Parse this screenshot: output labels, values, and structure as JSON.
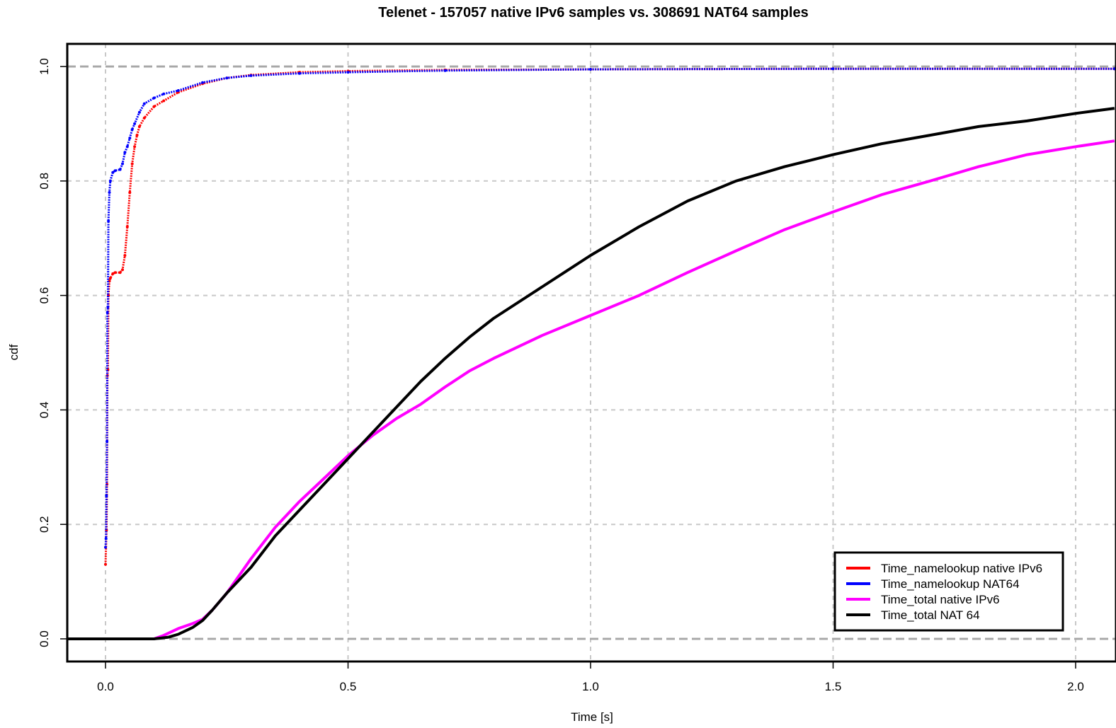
{
  "chart_data": {
    "type": "line",
    "title": "Telenet - 157057 native IPv6 samples vs. 308691 NAT64 samples",
    "xlabel": "Time [s]",
    "ylabel": "cdf",
    "xlim": [
      -0.08,
      2.08
    ],
    "ylim": [
      -0.04,
      1.04
    ],
    "x_ticks": [
      "0.0",
      "0.5",
      "1.0",
      "1.5",
      "2.0"
    ],
    "y_ticks": [
      "0.0",
      "0.2",
      "0.4",
      "0.6",
      "0.8",
      "1.0"
    ],
    "grid": true,
    "legend_position": "bottom-right",
    "series": [
      {
        "name": "Time_namelookup native IPv6",
        "color": "#ff0000",
        "style": "points",
        "x": [
          0.0,
          0.002,
          0.003,
          0.004,
          0.005,
          0.006,
          0.008,
          0.01,
          0.015,
          0.02,
          0.03,
          0.035,
          0.04,
          0.045,
          0.05,
          0.055,
          0.06,
          0.065,
          0.07,
          0.08,
          0.1,
          0.12,
          0.15,
          0.2,
          0.25,
          0.3,
          0.4,
          0.5,
          0.7,
          1.0,
          1.5,
          2.08
        ],
        "y": [
          0.13,
          0.19,
          0.27,
          0.46,
          0.47,
          0.6,
          0.625,
          0.63,
          0.638,
          0.64,
          0.64,
          0.645,
          0.67,
          0.72,
          0.78,
          0.83,
          0.86,
          0.88,
          0.895,
          0.91,
          0.93,
          0.94,
          0.955,
          0.97,
          0.98,
          0.985,
          0.99,
          0.992,
          0.994,
          0.995,
          0.996,
          0.996
        ]
      },
      {
        "name": "Time_namelookup NAT64",
        "color": "#0000ff",
        "style": "points",
        "x": [
          0.0,
          0.001,
          0.002,
          0.003,
          0.004,
          0.005,
          0.006,
          0.008,
          0.01,
          0.015,
          0.02,
          0.03,
          0.035,
          0.04,
          0.045,
          0.05,
          0.055,
          0.06,
          0.07,
          0.08,
          0.1,
          0.12,
          0.15,
          0.2,
          0.25,
          0.3,
          0.4,
          0.5,
          0.7,
          1.0,
          1.5,
          2.08
        ],
        "y": [
          0.16,
          0.175,
          0.25,
          0.345,
          0.57,
          0.58,
          0.73,
          0.78,
          0.8,
          0.815,
          0.818,
          0.82,
          0.83,
          0.85,
          0.86,
          0.875,
          0.89,
          0.9,
          0.92,
          0.935,
          0.945,
          0.952,
          0.958,
          0.972,
          0.98,
          0.984,
          0.988,
          0.99,
          0.993,
          0.995,
          0.996,
          0.996
        ]
      },
      {
        "name": "Time_total native IPv6",
        "color": "#ff00ff",
        "style": "line",
        "x": [
          -0.08,
          0.1,
          0.12,
          0.15,
          0.18,
          0.2,
          0.22,
          0.25,
          0.3,
          0.35,
          0.4,
          0.45,
          0.5,
          0.55,
          0.6,
          0.65,
          0.7,
          0.75,
          0.8,
          0.9,
          1.0,
          1.1,
          1.2,
          1.3,
          1.4,
          1.5,
          1.6,
          1.7,
          1.8,
          1.9,
          2.0,
          2.08
        ],
        "y": [
          0.0,
          0.0,
          0.006,
          0.018,
          0.027,
          0.034,
          0.05,
          0.08,
          0.14,
          0.195,
          0.24,
          0.28,
          0.32,
          0.355,
          0.385,
          0.41,
          0.44,
          0.468,
          0.49,
          0.53,
          0.565,
          0.6,
          0.64,
          0.678,
          0.715,
          0.746,
          0.776,
          0.8,
          0.825,
          0.846,
          0.86,
          0.87
        ]
      },
      {
        "name": "Time_total NAT 64",
        "color": "#000000",
        "style": "line",
        "x": [
          -0.08,
          0.1,
          0.13,
          0.15,
          0.18,
          0.2,
          0.22,
          0.25,
          0.3,
          0.35,
          0.4,
          0.45,
          0.5,
          0.55,
          0.6,
          0.65,
          0.7,
          0.75,
          0.8,
          0.9,
          1.0,
          1.1,
          1.2,
          1.3,
          1.4,
          1.5,
          1.6,
          1.7,
          1.8,
          1.9,
          2.0,
          2.08
        ],
        "y": [
          0.0,
          0.0,
          0.003,
          0.008,
          0.02,
          0.032,
          0.05,
          0.08,
          0.125,
          0.18,
          0.225,
          0.27,
          0.315,
          0.36,
          0.405,
          0.45,
          0.49,
          0.527,
          0.56,
          0.615,
          0.67,
          0.72,
          0.765,
          0.8,
          0.825,
          0.846,
          0.865,
          0.88,
          0.895,
          0.905,
          0.918,
          0.927
        ]
      }
    ]
  }
}
